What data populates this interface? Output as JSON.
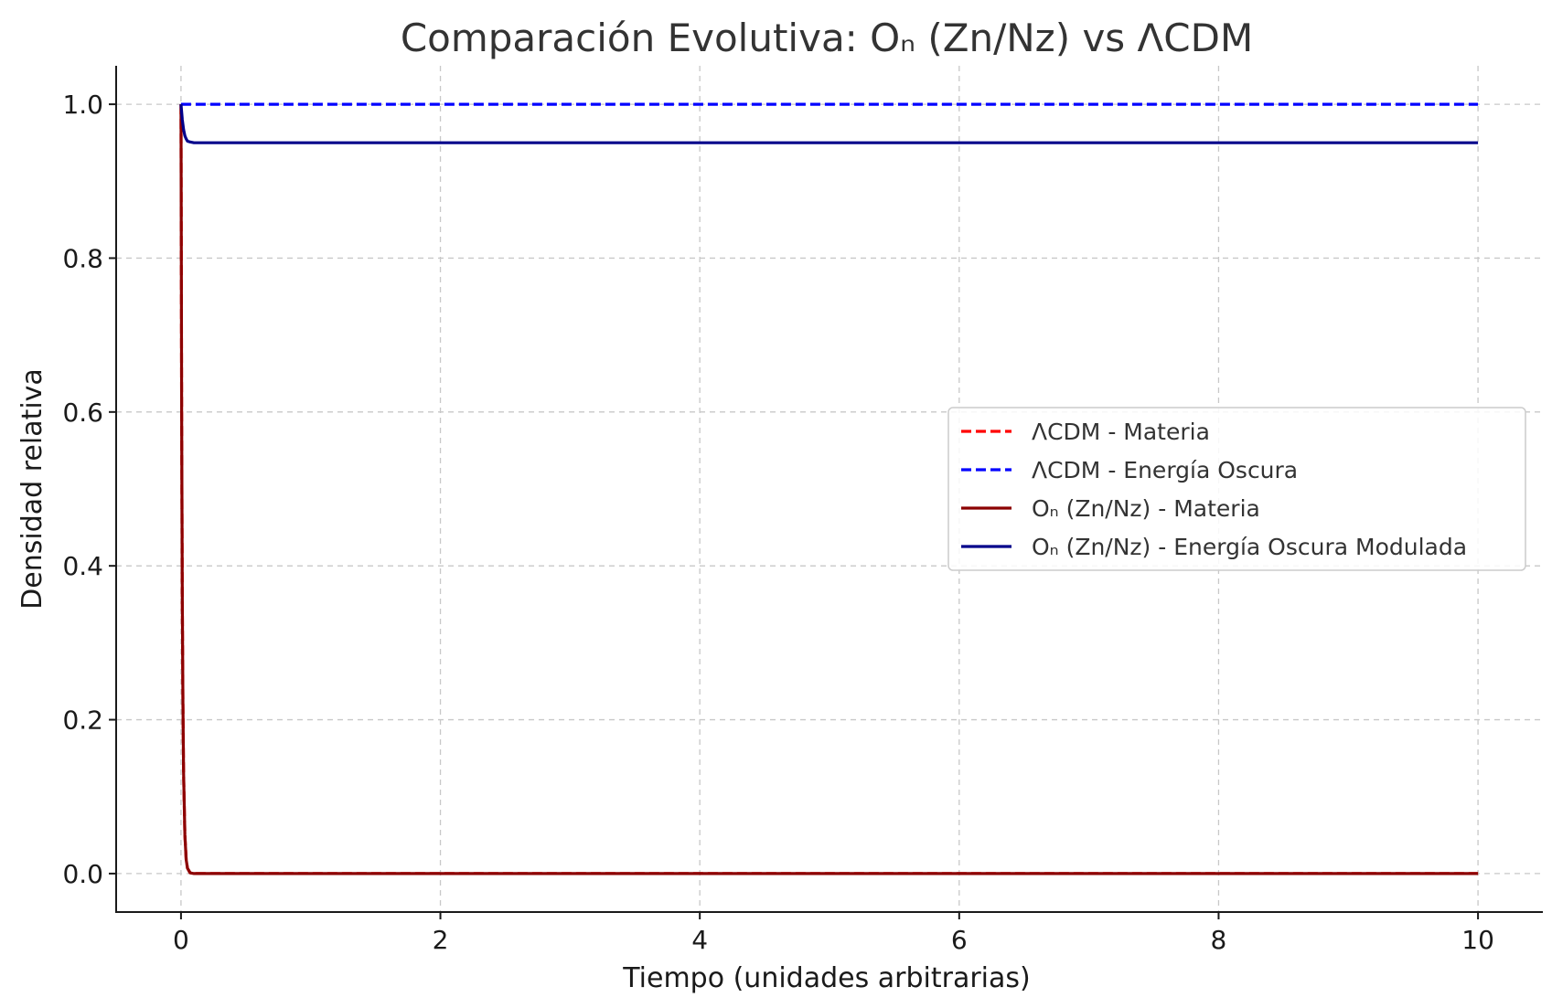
{
  "chart_data": {
    "type": "line",
    "title": "Comparación Evolutiva: Oₙ (Zn/Nz) vs ΛCDM",
    "xlabel": "Tiempo (unidades arbitrarias)",
    "ylabel": "Densidad relativa",
    "xlim": [
      -0.5,
      10.5
    ],
    "ylim": [
      -0.05,
      1.05
    ],
    "xticks": [
      0,
      2,
      4,
      6,
      8,
      10
    ],
    "xtick_labels": [
      "0",
      "2",
      "4",
      "6",
      "8",
      "10"
    ],
    "yticks": [
      0.0,
      0.2,
      0.4,
      0.6,
      0.8,
      1.0
    ],
    "ytick_labels": [
      "0.0",
      "0.2",
      "0.4",
      "0.6",
      "0.8",
      "1.0"
    ],
    "grid": true,
    "legend_position": "center-right",
    "series": [
      {
        "name": "ΛCDM - Materia",
        "color": "#ff0000",
        "style": "dashed",
        "x": [
          0,
          0.005,
          0.01,
          0.015,
          0.02,
          0.03,
          0.04,
          0.05,
          0.07,
          0.1,
          0.2,
          1,
          2,
          3,
          4,
          5,
          6,
          7,
          8,
          9,
          10
        ],
        "y": [
          1.0,
          0.6,
          0.36,
          0.22,
          0.13,
          0.05,
          0.018,
          0.007,
          0.001,
          0.0,
          0.0,
          0.0,
          0.0,
          0.0,
          0.0,
          0.0,
          0.0,
          0.0,
          0.0,
          0.0,
          0.0
        ]
      },
      {
        "name": "ΛCDM - Energía Oscura",
        "color": "#0000ff",
        "style": "dashed",
        "x": [
          0,
          1,
          2,
          3,
          4,
          5,
          6,
          7,
          8,
          9,
          10
        ],
        "y": [
          1.0,
          1.0,
          1.0,
          1.0,
          1.0,
          1.0,
          1.0,
          1.0,
          1.0,
          1.0,
          1.0
        ]
      },
      {
        "name": "Oₙ (Zn/Nz) - Materia",
        "color": "#8b0000",
        "style": "solid",
        "x": [
          0,
          0.005,
          0.01,
          0.015,
          0.02,
          0.03,
          0.04,
          0.05,
          0.07,
          0.1,
          0.2,
          1,
          2,
          3,
          4,
          5,
          6,
          7,
          8,
          9,
          10
        ],
        "y": [
          1.0,
          0.6,
          0.36,
          0.22,
          0.13,
          0.05,
          0.018,
          0.007,
          0.001,
          0.0,
          0.0,
          0.0,
          0.0,
          0.0,
          0.0,
          0.0,
          0.0,
          0.0,
          0.0,
          0.0,
          0.0
        ]
      },
      {
        "name": "Oₙ (Zn/Nz) - Energía Oscura Modulada",
        "color": "#00008b",
        "style": "solid",
        "x": [
          0,
          0.01,
          0.02,
          0.03,
          0.04,
          0.05,
          0.07,
          0.1,
          0.2,
          1,
          2,
          3,
          4,
          5,
          6,
          7,
          8,
          9,
          10
        ],
        "y": [
          1.0,
          0.98,
          0.967,
          0.959,
          0.955,
          0.952,
          0.951,
          0.95,
          0.95,
          0.95,
          0.95,
          0.95,
          0.95,
          0.95,
          0.95,
          0.95,
          0.95,
          0.95,
          0.95
        ]
      }
    ]
  }
}
